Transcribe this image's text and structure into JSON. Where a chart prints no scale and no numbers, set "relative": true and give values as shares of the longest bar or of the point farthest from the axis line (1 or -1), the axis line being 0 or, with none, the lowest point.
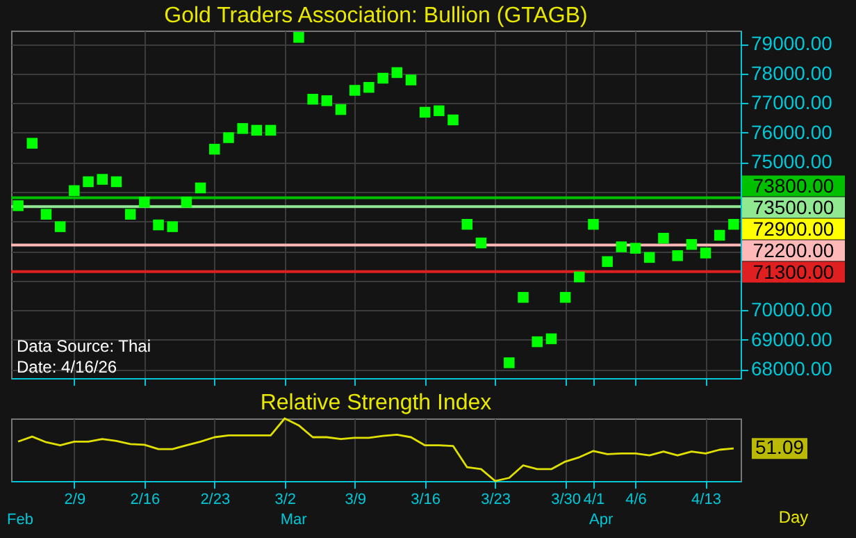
{
  "chart_data": [
    {
      "type": "scatter",
      "title": "Gold Traders Association: Bullion (GTAGB)",
      "categories": [
        null,
        null,
        null,
        null,
        null,
        null,
        null,
        null,
        null,
        null,
        null,
        null,
        null,
        null,
        null,
        null,
        null,
        null,
        null,
        null,
        null,
        null,
        null,
        null,
        null,
        null,
        null,
        null,
        null,
        null,
        null,
        null,
        null,
        null,
        null,
        null,
        null,
        null,
        null,
        null,
        null,
        null,
        null,
        null,
        null,
        null,
        null,
        null,
        null,
        null,
        null,
        null
      ],
      "series": [
        {
          "color": "#00ff00",
          "value_labels": [
            null,
            null,
            null,
            null,
            null,
            null,
            null,
            null,
            null,
            null,
            null,
            null,
            null,
            null,
            null,
            null,
            null,
            null,
            null,
            null,
            null,
            null,
            null,
            null,
            null,
            null,
            null,
            null,
            null,
            null,
            null,
            null,
            null,
            null,
            null,
            null,
            null,
            null,
            null,
            null,
            null,
            null,
            null,
            null,
            null,
            null,
            null,
            null,
            null,
            null,
            null,
            "72900.00"
          ],
          "values": [
            73530,
            75640,
            73240,
            72820,
            74040,
            74340,
            74420,
            74340,
            73240,
            73650,
            72880,
            72820,
            73650,
            74130,
            75440,
            75830,
            76140,
            76080,
            76080,
            null,
            79220,
            77130,
            77080,
            76780,
            77430,
            77530,
            77840,
            78030,
            77780,
            76690,
            76740,
            76430,
            72900,
            72270,
            null,
            68220,
            70430,
            68930,
            69030,
            70430,
            71120,
            72900,
            71640,
            72140,
            72090,
            71780,
            72430,
            71840,
            72220,
            71930,
            72530,
            72900
          ]
        }
      ],
      "marker": "square",
      "ylim": [
        67700,
        79450
      ],
      "yticks": [
        {
          "value": 68000,
          "label": "68000.00"
        },
        {
          "value": 69000,
          "label": "69000.00"
        },
        {
          "value": 70000,
          "label": "70000.00"
        },
        {
          "value": 71000,
          "label": null
        },
        {
          "value": 72000,
          "label": null
        },
        {
          "value": 73000,
          "label": null
        },
        {
          "value": 74000,
          "label": null
        },
        {
          "value": 75000,
          "label": "75000.00"
        },
        {
          "value": 76000,
          "label": "76000.00"
        },
        {
          "value": 77000,
          "label": "77000.00"
        },
        {
          "value": 78000,
          "label": "78000.00"
        },
        {
          "value": 79000,
          "label": "79000.00"
        }
      ],
      "grid": true,
      "tick_labels": "y",
      "ref_lines": [
        {
          "axis": "y",
          "value": 73800,
          "label": "73800.00",
          "color": "#00c000"
        },
        {
          "axis": "y",
          "value": 73500,
          "label": "73500.00",
          "color": "#90e890"
        },
        {
          "axis": "y",
          "value": 72200,
          "label": "72200.00",
          "color": "#ffb8b8"
        },
        {
          "axis": "y",
          "value": 71300,
          "label": "71300.00",
          "color": "#e02020"
        }
      ],
      "annotations": [
        "Data Source: Thai",
        "Date: 4/16/26"
      ]
    },
    {
      "type": "line",
      "title": "Relative Strength Index",
      "categories": [
        null,
        null,
        null,
        null,
        "2/9",
        null,
        null,
        null,
        null,
        "2/16",
        null,
        null,
        null,
        null,
        "2/23",
        null,
        null,
        null,
        null,
        "3/2",
        null,
        null,
        null,
        null,
        "3/9",
        null,
        null,
        null,
        null,
        "3/16",
        null,
        null,
        null,
        null,
        "3/23",
        null,
        null,
        null,
        null,
        "3/30",
        null,
        "4/1",
        null,
        null,
        "4/6",
        null,
        null,
        null,
        null,
        "4/13",
        null,
        null
      ],
      "series": [
        {
          "color": "#e0e000",
          "values": [
            0.63,
            0.71,
            0.62,
            0.57,
            0.63,
            0.63,
            0.67,
            0.64,
            0.59,
            0.58,
            0.51,
            0.51,
            0.57,
            0.63,
            0.7,
            0.73,
            0.73,
            0.73,
            0.73,
            1,
            0.89,
            0.7,
            0.7,
            0.67,
            0.69,
            0.69,
            0.72,
            0.74,
            0.7,
            0.57,
            0.57,
            0.56,
            0.22,
            0.19,
            0,
            0.05,
            0.25,
            0.19,
            0.19,
            0.31,
            0.38,
            0.48,
            0.43,
            0.44,
            0.44,
            0.41,
            0.47,
            0.41,
            0.47,
            0.44,
            0.5,
            0.52
          ]
        }
      ],
      "relative": true,
      "grid": true,
      "tick_labels": "x",
      "marker": "none",
      "annotations": [
        "51.09",
        "Day",
        "Feb",
        "Mar",
        "Apr"
      ]
    }
  ]
}
